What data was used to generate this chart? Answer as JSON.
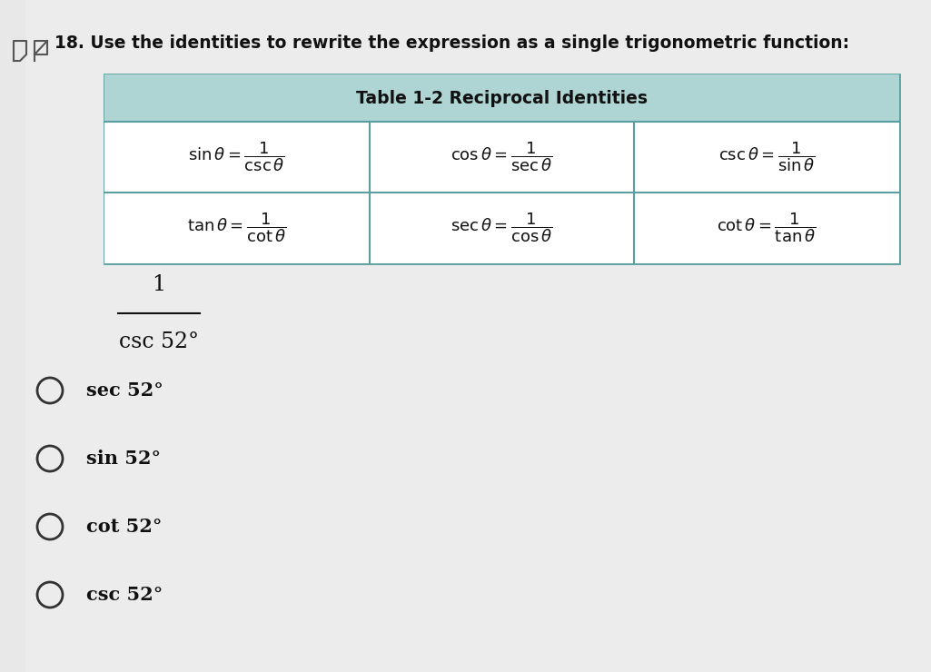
{
  "bg_color": "#e8e8e8",
  "title": "18. Use the identities to rewrite the expression as a single trigonometric function:",
  "table_title": "Table 1-2 Reciprocal Identities",
  "table_header_bg": "#b8d8d8",
  "table_border_color": "#5a9ea0",
  "expression_numerator": "1",
  "expression_denominator": "csc 52°",
  "choices": [
    "sec 52°",
    "sin 52°",
    "cot 52°",
    "csc 52°"
  ],
  "title_fontsize": 13.5,
  "choice_fontsize": 15
}
